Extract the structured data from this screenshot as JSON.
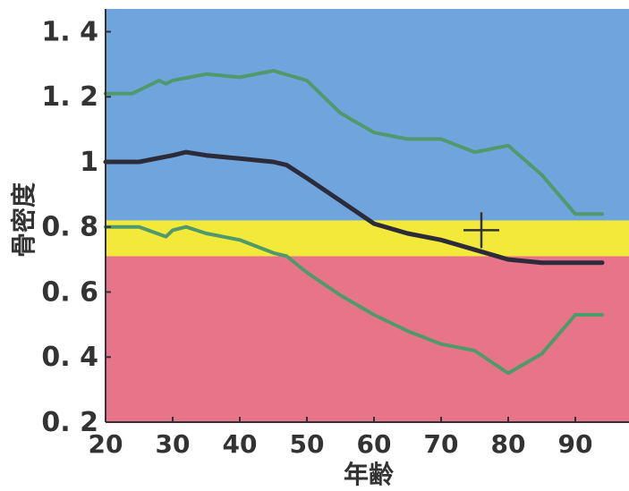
{
  "chart_data": {
    "type": "line",
    "xlabel": "年齢",
    "ylabel": "骨密度",
    "xlim": [
      20,
      98
    ],
    "ylim": [
      0.2,
      1.47
    ],
    "x_ticks": [
      20,
      30,
      40,
      50,
      60,
      70,
      80,
      90
    ],
    "y_ticks": [
      {
        "value": 0.2,
        "label": "0. 2"
      },
      {
        "value": 0.4,
        "label": "0. 4"
      },
      {
        "value": 0.6,
        "label": "0. 6"
      },
      {
        "value": 0.8,
        "label": "0. 8"
      },
      {
        "value": 1.0,
        "label": "1"
      },
      {
        "value": 1.2,
        "label": "1. 2"
      },
      {
        "value": 1.4,
        "label": "1. 4"
      }
    ],
    "bands": [
      {
        "from": 0.2,
        "to": 0.71,
        "color": "#e8748a"
      },
      {
        "from": 0.71,
        "to": 0.82,
        "color": "#f2e93a"
      },
      {
        "from": 0.82,
        "to": 1.47,
        "color": "#6fa4dd"
      }
    ],
    "series": [
      {
        "color": "#4f9a6b",
        "x": [
          20,
          24,
          28,
          29,
          30,
          35,
          40,
          45,
          50,
          55,
          60,
          65,
          70,
          75,
          80,
          85,
          90,
          94
        ],
        "y": [
          1.21,
          1.21,
          1.25,
          1.24,
          1.25,
          1.27,
          1.26,
          1.28,
          1.25,
          1.15,
          1.09,
          1.07,
          1.07,
          1.03,
          1.05,
          0.96,
          0.84,
          0.84
        ]
      },
      {
        "color": "#2b2b3a",
        "x": [
          20,
          25,
          30,
          32,
          35,
          40,
          45,
          47,
          50,
          55,
          60,
          65,
          70,
          75,
          80,
          85,
          90,
          94
        ],
        "y": [
          1.0,
          1.0,
          1.02,
          1.03,
          1.02,
          1.01,
          1.0,
          0.99,
          0.95,
          0.88,
          0.81,
          0.78,
          0.76,
          0.73,
          0.7,
          0.69,
          0.69,
          0.69
        ]
      },
      {
        "color": "#4f9a6b",
        "x": [
          20,
          25,
          29,
          30,
          32,
          35,
          40,
          45,
          47,
          50,
          55,
          60,
          65,
          70,
          75,
          80,
          85,
          90,
          94
        ],
        "y": [
          0.8,
          0.8,
          0.77,
          0.79,
          0.8,
          0.78,
          0.76,
          0.72,
          0.71,
          0.66,
          0.59,
          0.53,
          0.48,
          0.44,
          0.42,
          0.35,
          0.41,
          0.53,
          0.53
        ]
      }
    ],
    "marker": {
      "x": 76,
      "y": 0.79,
      "shape": "cross",
      "color": "#333333"
    },
    "grid": false
  }
}
